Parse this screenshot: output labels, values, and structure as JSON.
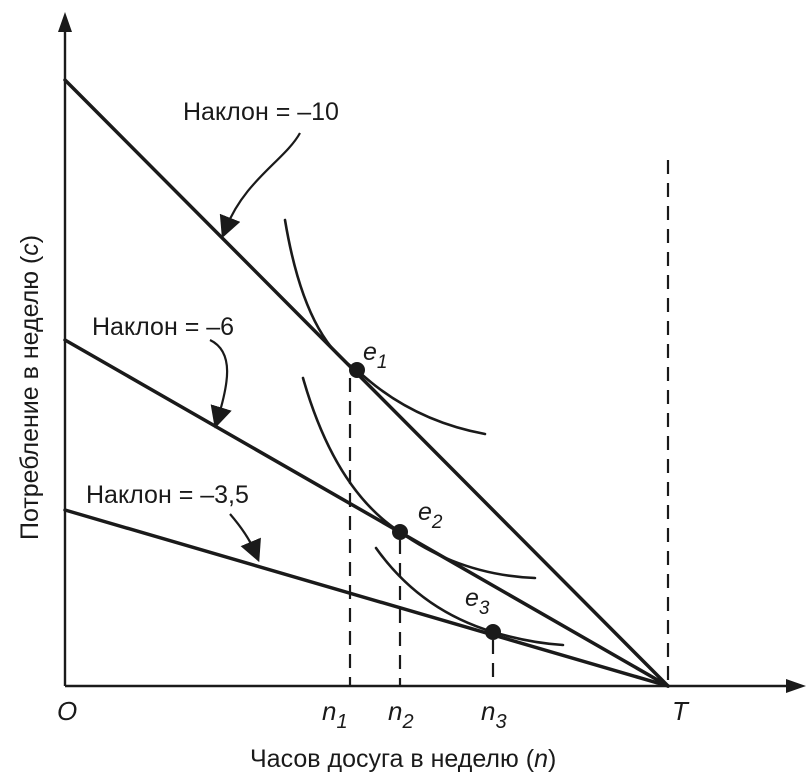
{
  "axes": {
    "y_label": "Потребление в неделю",
    "y_var": "c",
    "x_label": "Часов досуга в неделю",
    "x_var": "n",
    "origin": "O",
    "ticks": [
      {
        "base": "n",
        "sub": "1"
      },
      {
        "base": "n",
        "sub": "2"
      },
      {
        "base": "n",
        "sub": "3"
      }
    ],
    "end_tick": "T"
  },
  "budget_lines": [
    {
      "label": "Наклон = –10",
      "slope": -10
    },
    {
      "label": "Наклон = –6",
      "slope": -6
    },
    {
      "label": "Наклон = –3,5",
      "slope": -3.5
    }
  ],
  "points": [
    {
      "base": "e",
      "sub": "1"
    },
    {
      "base": "e",
      "sub": "2"
    },
    {
      "base": "e",
      "sub": "3"
    }
  ]
}
